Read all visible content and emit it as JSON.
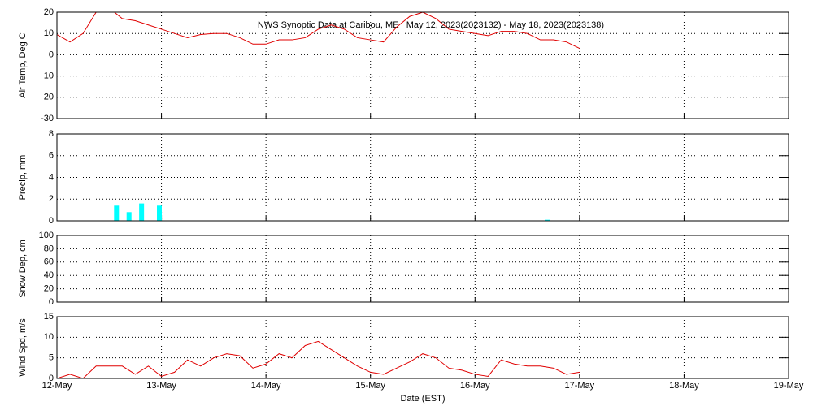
{
  "chart_data": [
    {
      "type": "line",
      "title": "NWS Synoptic Data at Caribou, ME   May 12, 2023(2023132) - May 18, 2023(2023138)",
      "y_label": "Air Temp, Deg C",
      "color": "#e00000",
      "x": [
        0,
        0.125,
        0.25,
        0.375,
        0.5,
        0.625,
        0.75,
        0.875,
        1,
        1.125,
        1.25,
        1.375,
        1.5,
        1.625,
        1.75,
        1.875,
        2,
        2.125,
        2.25,
        2.375,
        2.5,
        2.625,
        2.75,
        2.875,
        3,
        3.125,
        3.25,
        3.375,
        3.5,
        3.625,
        3.75,
        3.875,
        4,
        4.125,
        4.25,
        4.375,
        4.5,
        4.625,
        4.75,
        4.875,
        5
      ],
      "values": [
        9.5,
        6,
        10,
        20,
        22,
        17,
        16,
        14,
        12,
        10,
        8,
        9.5,
        10,
        10,
        8,
        5,
        5,
        7,
        7,
        8,
        12,
        14,
        12,
        8,
        7,
        6,
        13,
        18,
        20,
        17,
        12,
        11,
        10,
        9,
        11,
        11,
        10,
        7,
        7,
        6,
        3
      ],
      "xlim": [
        0,
        7
      ],
      "xticks": [
        1,
        2,
        3,
        4,
        5,
        6
      ],
      "ylim": [
        -30,
        20
      ],
      "yticks": [
        -30,
        -20,
        -10,
        0,
        10,
        20
      ],
      "grid": true
    },
    {
      "type": "bar",
      "y_label": "Precip, mm",
      "color": "#00ffff",
      "x": [
        0.57,
        0.69,
        0.81,
        0.98,
        4.69
      ],
      "values": [
        1.4,
        0.8,
        1.6,
        1.4,
        0.1
      ],
      "xlim": [
        0,
        7
      ],
      "xticks": [
        1,
        2,
        3,
        4,
        5,
        6
      ],
      "ylim": [
        0,
        8
      ],
      "yticks": [
        0,
        2,
        4,
        6,
        8
      ],
      "grid": true
    },
    {
      "type": "line",
      "y_label": "Snow Dep, cm",
      "xlim": [
        0,
        7
      ],
      "xticks": [
        1,
        2,
        3,
        4,
        5,
        6
      ],
      "ylim": [
        0,
        100
      ],
      "yticks": [
        0,
        20,
        40,
        60,
        80,
        100
      ],
      "grid": true
    },
    {
      "type": "line",
      "y_label": "Wind Spd, m/s",
      "x_label": "Date (EST)",
      "color": "#e00000",
      "x": [
        0,
        0.125,
        0.25,
        0.375,
        0.5,
        0.625,
        0.75,
        0.875,
        1,
        1.125,
        1.25,
        1.375,
        1.5,
        1.625,
        1.75,
        1.875,
        2,
        2.125,
        2.25,
        2.375,
        2.5,
        2.625,
        2.75,
        2.875,
        3,
        3.125,
        3.25,
        3.375,
        3.5,
        3.625,
        3.75,
        3.875,
        4,
        4.125,
        4.25,
        4.375,
        4.5,
        4.625,
        4.75,
        4.875,
        5
      ],
      "values": [
        0,
        1,
        0,
        3,
        3,
        3,
        1,
        3,
        0.5,
        1.5,
        4.5,
        3,
        5,
        6,
        5.5,
        2.5,
        3.5,
        6,
        5,
        8,
        9,
        7,
        5,
        3,
        1.5,
        1,
        2.5,
        4,
        6,
        5,
        2.5,
        2,
        1,
        0.5,
        4.5,
        3.5,
        3,
        3,
        2.5,
        1,
        1.5
      ],
      "xlim": [
        0,
        7
      ],
      "xticks": [
        {
          "value": 0,
          "label": "12-May"
        },
        {
          "value": 1,
          "label": "13-May"
        },
        {
          "value": 2,
          "label": "14-May"
        },
        {
          "value": 3,
          "label": "15-May"
        },
        {
          "value": 4,
          "label": "16-May"
        },
        {
          "value": 5,
          "label": "17-May"
        },
        {
          "value": 6,
          "label": "18-May"
        },
        {
          "value": 7,
          "label": "19-May"
        }
      ],
      "ylim": [
        0,
        15
      ],
      "yticks": [
        0,
        5,
        10,
        15
      ],
      "grid": true
    }
  ]
}
